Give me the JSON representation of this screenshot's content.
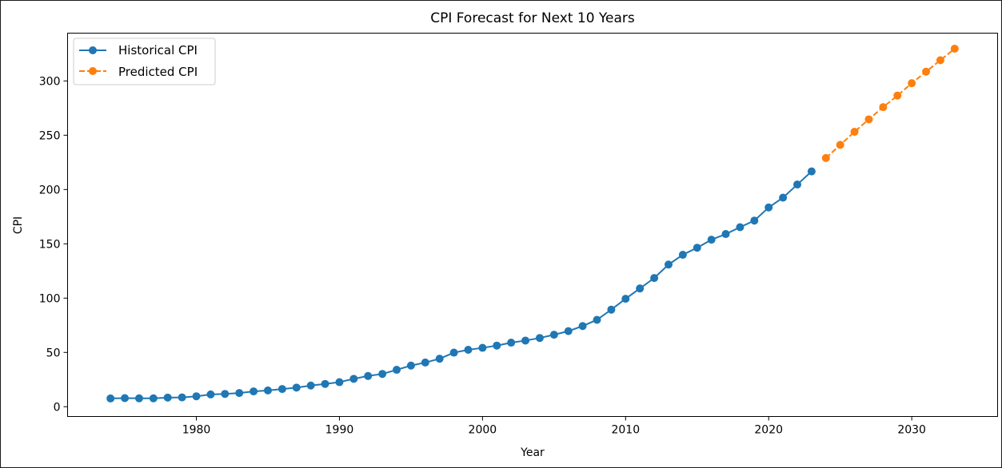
{
  "chart_data": {
    "type": "line",
    "title": "CPI Forecast for Next 10 Years",
    "xlabel": "Year",
    "ylabel": "CPI",
    "xlim": [
      1971,
      2036
    ],
    "ylim": [
      -9,
      344
    ],
    "xticks": [
      1980,
      1990,
      2000,
      2010,
      2020,
      2030
    ],
    "yticks": [
      0,
      50,
      100,
      150,
      200,
      250,
      300
    ],
    "grid": false,
    "legend_position": "top-left",
    "series": [
      {
        "name": "Historical CPI",
        "color": "#1f77b4",
        "linestyle": "solid",
        "marker": "circle",
        "x": [
          1974,
          1975,
          1976,
          1977,
          1978,
          1979,
          1980,
          1981,
          1982,
          1983,
          1984,
          1985,
          1986,
          1987,
          1988,
          1989,
          1990,
          1991,
          1992,
          1993,
          1994,
          1995,
          1996,
          1997,
          1998,
          1999,
          2000,
          2001,
          2002,
          2003,
          2004,
          2005,
          2006,
          2007,
          2008,
          2009,
          2010,
          2011,
          2012,
          2013,
          2014,
          2015,
          2016,
          2017,
          2018,
          2019,
          2020,
          2021,
          2022,
          2023
        ],
        "y": [
          7.6,
          7.9,
          7.7,
          7.7,
          8.4,
          8.6,
          9.6,
          11.3,
          11.8,
          12.6,
          14.1,
          15.0,
          16.3,
          17.6,
          19.5,
          21.0,
          22.6,
          25.7,
          28.3,
          30.2,
          34.0,
          37.9,
          40.7,
          44.2,
          49.8,
          52.4,
          54.2,
          56.3,
          59.0,
          60.9,
          63.3,
          66.3,
          69.6,
          74.3,
          80.0,
          89.4,
          99.4,
          108.9,
          118.5,
          130.9,
          139.9,
          146.4,
          153.8,
          159.0,
          165.3,
          171.4,
          183.5,
          192.5,
          204.6,
          216.7
        ]
      },
      {
        "name": "Predicted CPI",
        "color": "#ff7f0e",
        "linestyle": "dashed",
        "marker": "circle",
        "x": [
          2024,
          2025,
          2026,
          2027,
          2028,
          2029,
          2030,
          2031,
          2032,
          2033
        ],
        "y": [
          229.0,
          241.1,
          253.2,
          264.6,
          275.9,
          286.5,
          297.9,
          308.5,
          319.1,
          329.7
        ]
      }
    ]
  }
}
